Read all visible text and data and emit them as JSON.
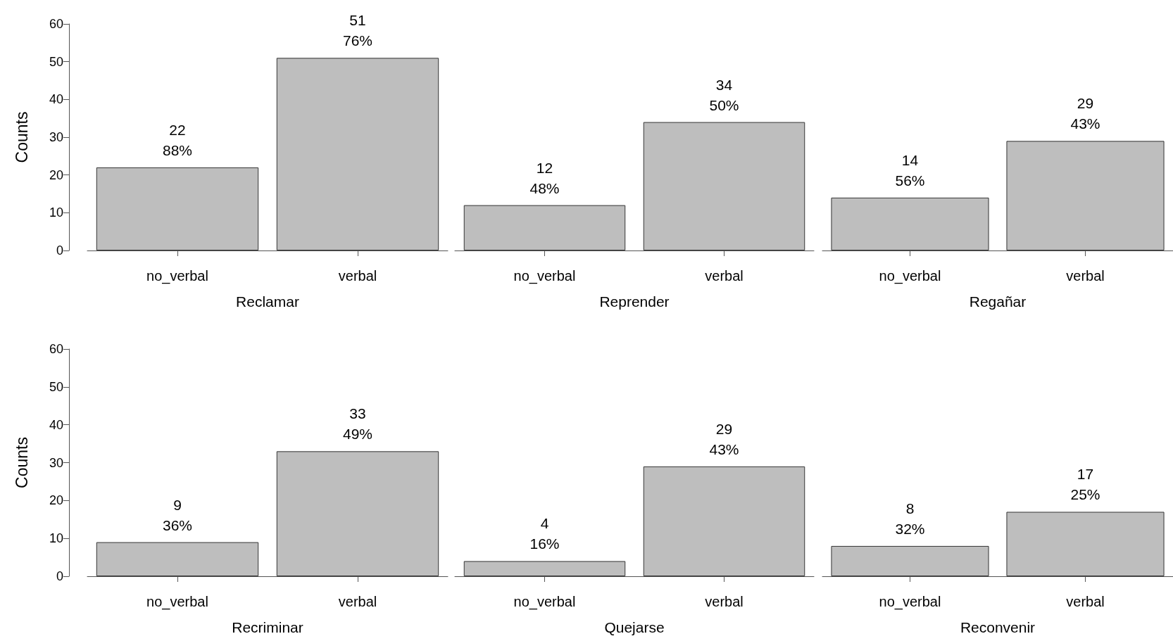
{
  "chart_data": [
    {
      "type": "bar",
      "categories": [
        "no_verbal",
        "verbal"
      ],
      "values": [
        22,
        51
      ],
      "value_labels": [
        "22\n88%",
        "51\n76%"
      ],
      "color": "#bebebe",
      "xlabel": "Reclamar",
      "ylabel": "Counts",
      "ylim": [
        0,
        60
      ],
      "yticks": [
        0,
        10,
        20,
        30,
        40,
        50,
        60
      ]
    },
    {
      "type": "bar",
      "categories": [
        "no_verbal",
        "verbal"
      ],
      "values": [
        12,
        34
      ],
      "value_labels": [
        "12\n48%",
        "34\n50%"
      ],
      "color": "#bebebe",
      "xlabel": "Reprender",
      "ylim": [
        0,
        60
      ],
      "yticks": [
        0,
        10,
        20,
        30,
        40,
        50,
        60
      ],
      "tick_labels": "x"
    },
    {
      "type": "bar",
      "categories": [
        "no_verbal",
        "verbal"
      ],
      "values": [
        14,
        29
      ],
      "value_labels": [
        "14\n56%",
        "29\n43%"
      ],
      "color": "#bebebe",
      "xlabel": "Regañar",
      "ylim": [
        0,
        60
      ],
      "yticks": [
        0,
        10,
        20,
        30,
        40,
        50,
        60
      ],
      "tick_labels": "x"
    },
    {
      "type": "bar",
      "categories": [
        "no_verbal",
        "verbal"
      ],
      "values": [
        9,
        33
      ],
      "value_labels": [
        "9\n36%",
        "33\n49%"
      ],
      "color": "#bebebe",
      "xlabel": "Recriminar",
      "ylabel": "Counts",
      "ylim": [
        0,
        60
      ],
      "yticks": [
        0,
        10,
        20,
        30,
        40,
        50,
        60
      ]
    },
    {
      "type": "bar",
      "categories": [
        "no_verbal",
        "verbal"
      ],
      "values": [
        4,
        29
      ],
      "value_labels": [
        "4\n16%",
        "29\n43%"
      ],
      "color": "#bebebe",
      "xlabel": "Quejarse",
      "ylim": [
        0,
        60
      ],
      "yticks": [
        0,
        10,
        20,
        30,
        40,
        50,
        60
      ],
      "tick_labels": "x"
    },
    {
      "type": "bar",
      "categories": [
        "no_verbal",
        "verbal"
      ],
      "values": [
        8,
        17
      ],
      "value_labels": [
        "8\n32%",
        "17\n25%"
      ],
      "color": "#bebebe",
      "xlabel": "Reconvenir",
      "ylim": [
        0,
        60
      ],
      "yticks": [
        0,
        10,
        20,
        30,
        40,
        50,
        60
      ],
      "tick_labels": "x"
    }
  ]
}
